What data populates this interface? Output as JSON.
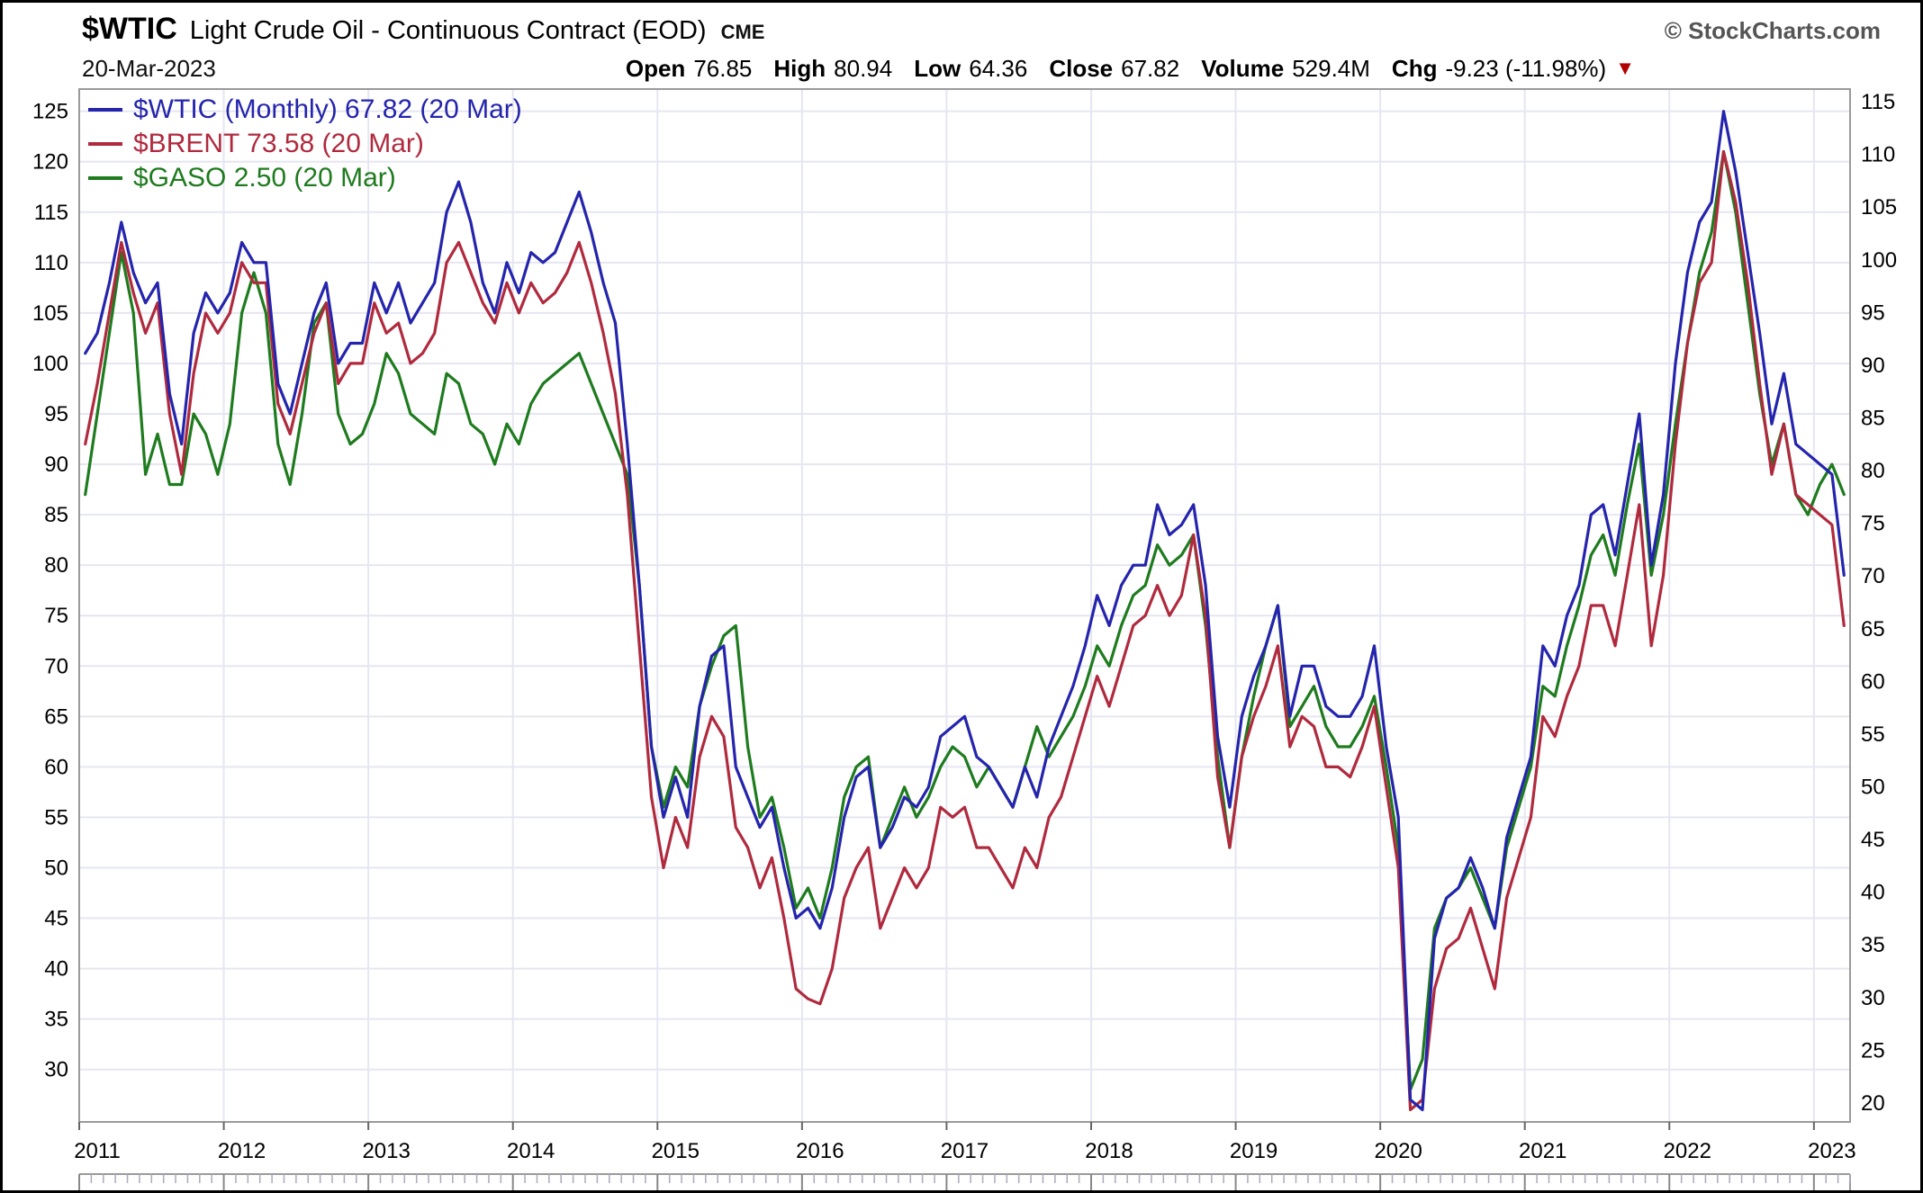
{
  "header": {
    "symbol": "$WTIC",
    "title": "Light Crude Oil - Continuous Contract (EOD)",
    "exchange": "CME",
    "branding": "© StockCharts.com",
    "date": "20-Mar-2023",
    "quote": {
      "open_label": "Open",
      "open": "76.85",
      "high_label": "High",
      "high": "80.94",
      "low_label": "Low",
      "low": "64.36",
      "close_label": "Close",
      "close": "67.82",
      "volume_label": "Volume",
      "volume": "529.4M",
      "chg_label": "Chg",
      "chg": "-9.23 (-11.98%)"
    }
  },
  "legend": [
    {
      "label": "$WTIC (Monthly) 67.82 (20 Mar)",
      "color": "#2424ad"
    },
    {
      "label": "$BRENT 73.58 (20 Mar)",
      "color": "#b02a3e"
    },
    {
      "label": "$GASO 2.50 (20 Mar)",
      "color": "#1e7b1e"
    }
  ],
  "chart_data": {
    "type": "line",
    "title": "$WTIC Light Crude Oil - Continuous Contract (EOD) CME",
    "x_start": "2011-01",
    "x_interval": "monthly",
    "x_tick_labels": [
      "2011",
      "2012",
      "2013",
      "2014",
      "2015",
      "2016",
      "2017",
      "2018",
      "2019",
      "2020",
      "2021",
      "2022",
      "2023"
    ],
    "left_axis_ticks": [
      125,
      120,
      115,
      110,
      105,
      100,
      95,
      90,
      85,
      80,
      75,
      70,
      65,
      60,
      55,
      50,
      45,
      40,
      35,
      30
    ],
    "right_axis_ticks": [
      115,
      110,
      105,
      100,
      95,
      90,
      85,
      80,
      75,
      70,
      65,
      60,
      55,
      50,
      45,
      40,
      35,
      30,
      25,
      20
    ],
    "grid": true,
    "legend_position": "top-left",
    "colors": {
      "grid": "#e6e6f2",
      "border": "#9a9a9a",
      "axis_text": "#000000"
    },
    "series": [
      {
        "name": "$GASO",
        "color": "#1e7b1e",
        "values": [
          87,
          95,
          103,
          111,
          105,
          89,
          93,
          88,
          88,
          95,
          93,
          89,
          94,
          105,
          109,
          105,
          92,
          88,
          95,
          104,
          106,
          95,
          92,
          93,
          96,
          101,
          99,
          95,
          94,
          93,
          99,
          98,
          94,
          93,
          90,
          94,
          92,
          96,
          98,
          99,
          100,
          101,
          98,
          95,
          92,
          89,
          78,
          62,
          56,
          60,
          58,
          66,
          70,
          73,
          74,
          62,
          55,
          57,
          52,
          46,
          48,
          45,
          50,
          57,
          60,
          61,
          52,
          55,
          58,
          55,
          57,
          60,
          62,
          61,
          58,
          60,
          58,
          56,
          60,
          64,
          61,
          63,
          65,
          68,
          72,
          70,
          74,
          77,
          78,
          82,
          80,
          81,
          83,
          74,
          61,
          52,
          61,
          67,
          72,
          76,
          64,
          66,
          68,
          64,
          62,
          62,
          64,
          67,
          60,
          52,
          28,
          31,
          44,
          47,
          48,
          50,
          47,
          44,
          52,
          56,
          60,
          68,
          67,
          72,
          76,
          81,
          83,
          79,
          86,
          92,
          79,
          85,
          94,
          102,
          109,
          113,
          121,
          115,
          106,
          97,
          90,
          94,
          87,
          85,
          88,
          90,
          87
        ]
      },
      {
        "name": "$BRENT",
        "color": "#b02a3e",
        "values": [
          92,
          98,
          105,
          112,
          107,
          103,
          106,
          95,
          89,
          99,
          105,
          103,
          105,
          110,
          108,
          108,
          96,
          93,
          98,
          103,
          106,
          98,
          100,
          100,
          106,
          103,
          104,
          100,
          101,
          103,
          110,
          112,
          109,
          106,
          104,
          108,
          105,
          108,
          106,
          107,
          109,
          112,
          108,
          103,
          97,
          87,
          72,
          57,
          50,
          55,
          52,
          61,
          65,
          63,
          54,
          52,
          48,
          51,
          45,
          38,
          37,
          36.5,
          40,
          47,
          50,
          52,
          44,
          47,
          50,
          48,
          50,
          56,
          55,
          56,
          52,
          52,
          50,
          48,
          52,
          50,
          55,
          57,
          61,
          65,
          69,
          66,
          70,
          74,
          75,
          78,
          75,
          77,
          83,
          75,
          59,
          52,
          61,
          65,
          68,
          72,
          62,
          65,
          64,
          60,
          60,
          59,
          62,
          66,
          58,
          50,
          26,
          27,
          38,
          42,
          43,
          46,
          42,
          38,
          47,
          51,
          55,
          65,
          63,
          67,
          70,
          76,
          76,
          72,
          79,
          86,
          72,
          79,
          92,
          102,
          108,
          110,
          121,
          116,
          108,
          98,
          89,
          94,
          87,
          86,
          85,
          84,
          74
        ]
      },
      {
        "name": "$WTIC",
        "color": "#2424ad",
        "values": [
          101,
          103,
          108,
          114,
          109,
          106,
          108,
          97,
          92,
          103,
          107,
          105,
          107,
          112,
          110,
          110,
          98,
          95,
          100,
          105,
          108,
          100,
          102,
          102,
          108,
          105,
          108,
          104,
          106,
          108,
          115,
          118,
          114,
          108,
          105,
          110,
          107,
          111,
          110,
          111,
          114,
          117,
          113,
          108,
          104,
          92,
          78,
          62,
          55,
          59,
          55,
          66,
          71,
          72,
          60,
          57,
          54,
          56,
          50,
          45,
          46,
          44,
          48,
          55,
          59,
          60,
          52,
          54,
          57,
          56,
          58,
          63,
          64,
          65,
          61,
          60,
          58,
          56,
          60,
          57,
          62,
          65,
          68,
          72,
          77,
          74,
          78,
          80,
          80,
          86,
          83,
          84,
          86,
          78,
          63,
          56,
          65,
          69,
          72,
          76,
          65,
          70,
          70,
          66,
          65,
          65,
          67,
          72,
          62,
          55,
          27,
          26,
          43,
          47,
          48,
          51,
          48,
          44,
          53,
          57,
          61,
          72,
          70,
          75,
          78,
          85,
          86,
          81,
          88,
          95,
          80,
          87,
          100,
          109,
          114,
          116,
          125,
          119,
          111,
          103,
          94,
          99,
          92,
          91,
          90,
          89,
          79
        ]
      }
    ]
  }
}
